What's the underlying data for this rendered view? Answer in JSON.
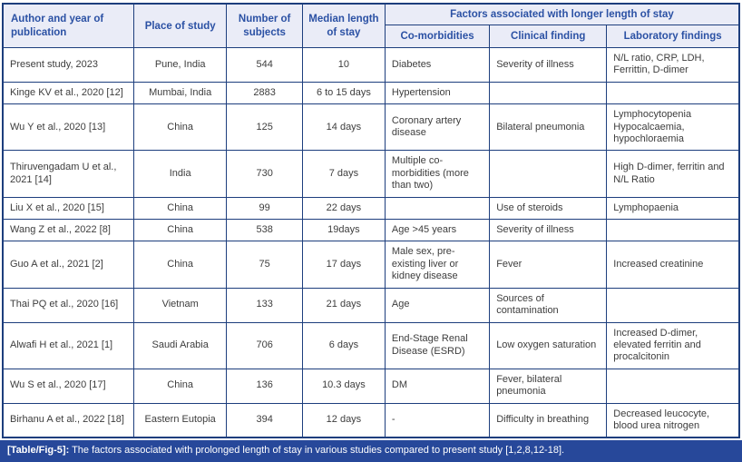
{
  "table": {
    "header": {
      "author": "Author and year of publication",
      "place": "Place of study",
      "subjects": "Number of subjects",
      "median": "Median length of stay",
      "factors_group": "Factors associated with longer length of stay",
      "comorbidities": "Co-morbidities",
      "clinical": "Clinical finding",
      "laboratory": "Laboratory findings"
    },
    "rows": [
      [
        "Present study, 2023",
        "Pune, India",
        "544",
        "10",
        "Diabetes",
        "Severity of illness",
        "N/L ratio, CRP, LDH, Ferrittin, D-dimer"
      ],
      [
        "Kinge KV et al., 2020 [12]",
        "Mumbai, India",
        "2883",
        "6 to 15 days",
        "Hypertension",
        "",
        ""
      ],
      [
        "Wu Y et al., 2020 [13]",
        "China",
        "125",
        "14 days",
        "Coronary artery disease",
        "Bilateral pneumonia",
        "Lymphocytopenia Hypocalcaemia, hypochloraemia"
      ],
      [
        "Thiruvengadam U et al., 2021 [14]",
        "India",
        "730",
        "7 days",
        "Multiple co-morbidities (more than two)",
        "",
        "High D-dimer, ferritin and N/L Ratio"
      ],
      [
        "Liu X et al., 2020 [15]",
        "China",
        "99",
        "22 days",
        "",
        "Use of steroids",
        "Lymphopaenia"
      ],
      [
        "Wang Z et al., 2022 [8]",
        "China",
        "538",
        "19days",
        "Age >45 years",
        "Severity of illness",
        ""
      ],
      [
        "Guo A et al., 2021 [2]",
        "China",
        "75",
        "17 days",
        "Male sex, pre-existing liver or kidney disease",
        "Fever",
        "Increased creatinine"
      ],
      [
        "Thai PQ et al., 2020 [16]",
        "Vietnam",
        "133",
        "21 days",
        "Age",
        "Sources of contamination",
        ""
      ],
      [
        "Alwafi H et al., 2021 [1]",
        "Saudi Arabia",
        "706",
        "6 days",
        "End-Stage Renal Disease (ESRD)",
        "Low oxygen saturation",
        "Increased D-dimer, elevated ferritin and procalcitonin"
      ],
      [
        "Wu S et al., 2020 [17]",
        "China",
        "136",
        "10.3 days",
        "DM",
        "Fever, bilateral pneumonia",
        ""
      ],
      [
        "Birhanu A et al., 2022 [18]",
        "Eastern Eutopia",
        "394",
        "12 days",
        "-",
        "Difficulty in breathing",
        "Decreased leucocyte, blood urea nitrogen"
      ]
    ]
  },
  "caption": {
    "label": "[Table/Fig-5]:",
    "text": " The factors associated with prolonged length of stay in various studies compared to present study [1,2,8,12-18]."
  },
  "colors": {
    "border": "#1d3e7d",
    "header_bg": "#eaecf7",
    "header_text": "#2b51a4",
    "body_text": "#3d3d3d",
    "caption_bg": "#27489a",
    "caption_text": "#ffffff"
  }
}
